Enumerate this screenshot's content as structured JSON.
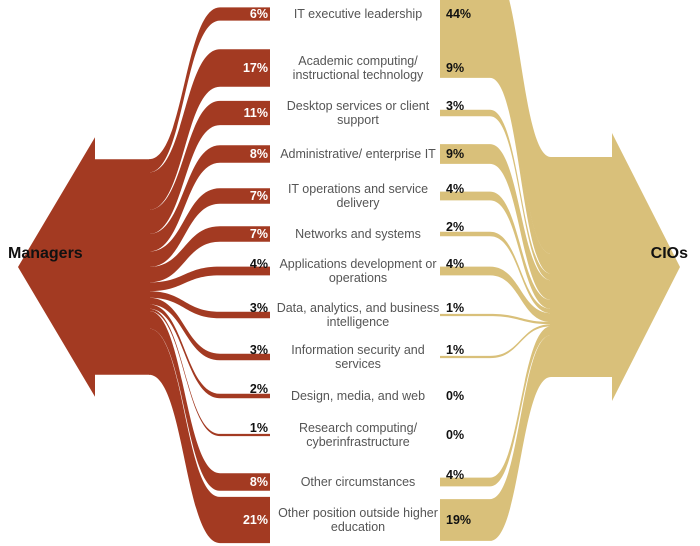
{
  "left_label": "Managers",
  "right_label": "CIOs",
  "colors": {
    "managers": "#a33a22",
    "cios": "#d9c07a"
  },
  "categories": [
    {
      "label": "IT executive leadership",
      "managers": "6%",
      "cios": "44%",
      "managers_value": 6,
      "cios_value": 44
    },
    {
      "label": "Academic computing/ instructional technology",
      "managers": "17%",
      "cios": "9%",
      "managers_value": 17,
      "cios_value": 9
    },
    {
      "label": "Desktop services or client support",
      "managers": "11%",
      "cios": "3%",
      "managers_value": 11,
      "cios_value": 3
    },
    {
      "label": "Administrative/ enterprise IT",
      "managers": "8%",
      "cios": "9%",
      "managers_value": 8,
      "cios_value": 9
    },
    {
      "label": "IT operations and service delivery",
      "managers": "7%",
      "cios": "4%",
      "managers_value": 7,
      "cios_value": 4
    },
    {
      "label": "Networks and systems",
      "managers": "7%",
      "cios": "2%",
      "managers_value": 7,
      "cios_value": 2
    },
    {
      "label": "Applications development or operations",
      "managers": "4%",
      "cios": "4%",
      "managers_value": 4,
      "cios_value": 4
    },
    {
      "label": "Data, analytics, and business intelligence",
      "managers": "3%",
      "cios": "1%",
      "managers_value": 3,
      "cios_value": 1
    },
    {
      "label": "Information security and services",
      "managers": "3%",
      "cios": "1%",
      "managers_value": 3,
      "cios_value": 1
    },
    {
      "label": "Design, media, and web",
      "managers": "2%",
      "cios": "0%",
      "managers_value": 2,
      "cios_value": 0
    },
    {
      "label": "Research computing/ cyberinfrastructure",
      "managers": "1%",
      "cios": "0%",
      "managers_value": 1,
      "cios_value": 0
    },
    {
      "label": "Other circumstances",
      "managers": "8%",
      "cios": "4%",
      "managers_value": 8,
      "cios_value": 4
    },
    {
      "label": "Other position outside higher education",
      "managers": "21%",
      "cios": "19%",
      "managers_value": 21,
      "cios_value": 19
    }
  ]
}
